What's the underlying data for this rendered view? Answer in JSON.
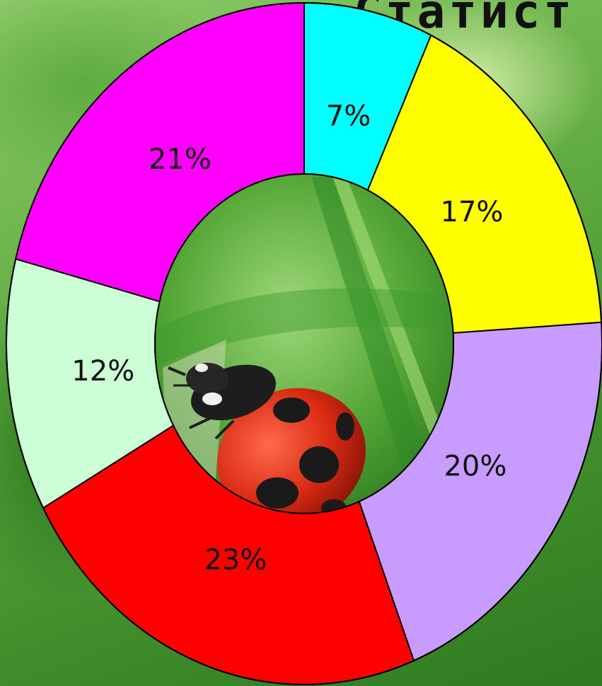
{
  "title": "Статист",
  "chart_data": {
    "type": "pie",
    "variant": "donut",
    "labels": [
      "7%",
      "17%",
      "20%",
      "23%",
      "12%",
      "21%"
    ],
    "values": [
      7,
      17,
      20,
      23,
      12,
      21
    ],
    "colors": [
      "#00ffff",
      "#ffff00",
      "#c89bff",
      "#ff0000",
      "#ccffd6",
      "#ff00ff"
    ],
    "start_angle": "top",
    "direction": "clockwise",
    "center_image": "ladybug on grass"
  }
}
